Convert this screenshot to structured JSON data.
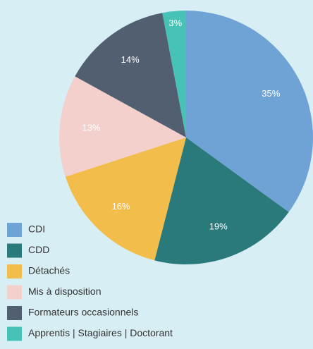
{
  "chart_data": {
    "type": "pie",
    "categories": [
      "CDI",
      "CDD",
      "Détachés",
      "Mis à disposition",
      "Formateurs occasionnels",
      "Apprentis | Stagiaires | Doctorant"
    ],
    "values": [
      35,
      19,
      16,
      13,
      14,
      3
    ],
    "value_labels": [
      "35%",
      "19%",
      "16%",
      "13%",
      "14%",
      "3%"
    ],
    "colors": [
      "#6fa3d6",
      "#2b7a7b",
      "#f2bd4b",
      "#f3d0cc",
      "#525f70",
      "#46c2b6"
    ],
    "legend": "bottom-left"
  }
}
